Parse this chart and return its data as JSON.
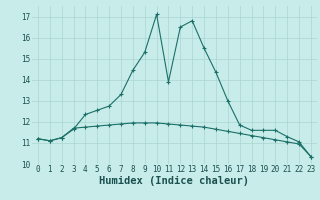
{
  "xlabel": "Humidex (Indice chaleur)",
  "background_color": "#c8ece9",
  "grid_color": "#afd8d4",
  "line_color": "#1a7068",
  "x_values": [
    0,
    1,
    2,
    3,
    4,
    5,
    6,
    7,
    8,
    9,
    10,
    11,
    12,
    13,
    14,
    15,
    16,
    17,
    18,
    19,
    20,
    21,
    22,
    23
  ],
  "line1_y": [
    11.2,
    11.1,
    11.25,
    11.65,
    12.35,
    12.55,
    12.75,
    13.3,
    14.45,
    15.3,
    17.1,
    13.9,
    16.5,
    16.8,
    15.5,
    14.35,
    13.0,
    11.85,
    11.6,
    11.6,
    11.6,
    11.3,
    11.05,
    10.35
  ],
  "line2_y": [
    11.2,
    11.1,
    11.25,
    11.7,
    11.75,
    11.8,
    11.85,
    11.9,
    11.95,
    11.95,
    11.95,
    11.9,
    11.85,
    11.8,
    11.75,
    11.65,
    11.55,
    11.45,
    11.35,
    11.25,
    11.15,
    11.05,
    10.95,
    10.35
  ],
  "ylim": [
    10,
    17.5
  ],
  "xlim": [
    -0.5,
    23.5
  ],
  "yticks": [
    10,
    11,
    12,
    13,
    14,
    15,
    16,
    17
  ],
  "xticks": [
    0,
    1,
    2,
    3,
    4,
    5,
    6,
    7,
    8,
    9,
    10,
    11,
    12,
    13,
    14,
    15,
    16,
    17,
    18,
    19,
    20,
    21,
    22,
    23
  ],
  "xlabel_fontsize": 7.5,
  "tick_fontsize": 5.5
}
